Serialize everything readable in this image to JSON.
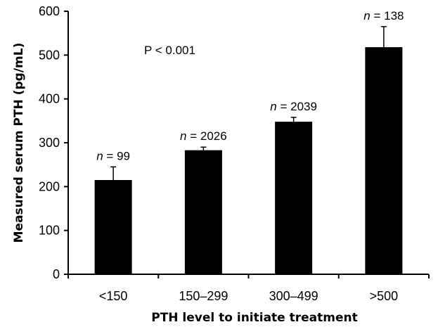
{
  "chart_data": {
    "type": "bar",
    "categories": [
      "<150",
      "150–299",
      "300–499",
      ">500"
    ],
    "values": [
      215,
      283,
      348,
      518
    ],
    "error_upper": [
      245,
      290,
      358,
      565
    ],
    "n_labels": [
      {
        "prefix": "n",
        "rest": " = 99"
      },
      {
        "prefix": "n",
        "rest": " = 2026"
      },
      {
        "prefix": "n",
        "rest": " = 2039"
      },
      {
        "prefix": "n",
        "rest": " = 138"
      }
    ],
    "xlabel": "PTH level to initiate treatment",
    "ylabel": "Measured serum PTH (pg/mL)",
    "yticks": [
      0,
      100,
      200,
      300,
      400,
      500,
      600
    ],
    "ylim": [
      0,
      600
    ],
    "annotation": "P < 0.001",
    "bar_color": "#000000",
    "grid": false,
    "legend": "none"
  }
}
